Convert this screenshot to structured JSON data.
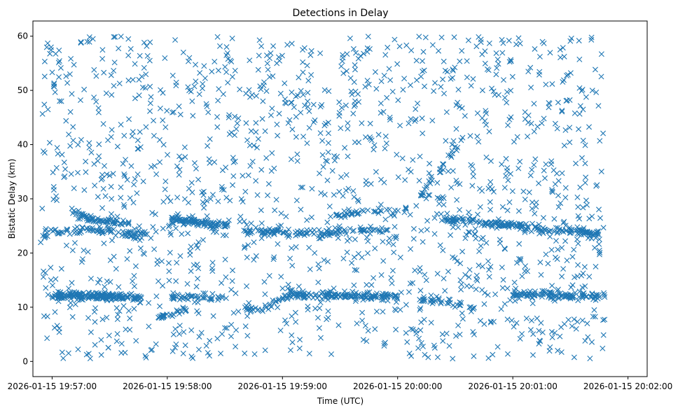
{
  "chart_data": {
    "type": "scatter",
    "title": "Detections in Delay",
    "xlabel": "Time (UTC)",
    "ylabel": "Bistatic Delay (km)",
    "marker": "x",
    "color": "#1f77b4",
    "x_range_seconds": [
      -10,
      310
    ],
    "ylim": [
      -2.8,
      62.8
    ],
    "yticks": [
      0,
      10,
      20,
      30,
      40,
      50,
      60
    ],
    "xticks": [
      {
        "t": 0,
        "label": "2026-01-15 19:57:00"
      },
      {
        "t": 60,
        "label": "2026-01-15 19:58:00"
      },
      {
        "t": 120,
        "label": "2026-01-15 19:59:00"
      },
      {
        "t": 180,
        "label": "2026-01-15 20:00:00"
      },
      {
        "t": 240,
        "label": "2026-01-15 20:01:00"
      },
      {
        "t": 300,
        "label": "2026-01-15 20:02:00"
      }
    ],
    "data_time_range_seconds": [
      -6,
      288
    ],
    "clutter_points": 1500,
    "tracks": [
      {
        "t": [
          -5,
          5,
          15,
          25,
          38,
          50
        ],
        "y": [
          23.5,
          24,
          23.8,
          24.2,
          23.6,
          23.5
        ],
        "n": 80
      },
      {
        "t": [
          0,
          8,
          15,
          22,
          30,
          37
        ],
        "y": [
          12,
          12.3,
          12.2,
          12.1,
          12,
          11.8
        ],
        "n": 140
      },
      {
        "t": [
          12,
          20,
          30,
          40
        ],
        "y": [
          27.5,
          26.5,
          25.8,
          25.5
        ],
        "n": 60
      },
      {
        "t": [
          24,
          35,
          47
        ],
        "y": [
          12.1,
          12,
          11.6
        ],
        "n": 40
      },
      {
        "t": [
          55,
          60,
          70
        ],
        "y": [
          8,
          8.5,
          9.5
        ],
        "n": 30
      },
      {
        "t": [
          62,
          70,
          80,
          92
        ],
        "y": [
          26.2,
          26,
          25.5,
          25
        ],
        "n": 90
      },
      {
        "t": [
          62,
          75,
          90
        ],
        "y": [
          12,
          11.8,
          12
        ],
        "n": 40
      },
      {
        "t": [
          100,
          108,
          115,
          125
        ],
        "y": [
          10,
          9.5,
          10.5,
          12.5
        ],
        "n": 40
      },
      {
        "t": [
          100,
          110,
          118
        ],
        "y": [
          24.3,
          24,
          23.8
        ],
        "n": 40
      },
      {
        "t": [
          120,
          135,
          150,
          165,
          175
        ],
        "y": [
          23.5,
          23.8,
          24,
          24.2,
          24.3
        ],
        "n": 80
      },
      {
        "t": [
          145,
          165,
          185
        ],
        "y": [
          26.8,
          27.8,
          28
        ],
        "n": 40
      },
      {
        "t": [
          125,
          145,
          165,
          180
        ],
        "y": [
          12.3,
          12.2,
          12,
          11.7
        ],
        "n": 140
      },
      {
        "t": [
          192,
          205,
          220
        ],
        "y": [
          11.5,
          11,
          10
        ],
        "n": 35
      },
      {
        "t": [
          205,
          220,
          238,
          255
        ],
        "y": [
          26.2,
          25.8,
          25.2,
          24.3
        ],
        "n": 110
      },
      {
        "t": [
          252,
          268,
          285
        ],
        "y": [
          24,
          24.3,
          23.5
        ],
        "n": 70
      },
      {
        "t": [
          240,
          262,
          288
        ],
        "y": [
          12.3,
          12.2,
          12
        ],
        "n": 110
      },
      {
        "t": [
          192,
          200,
          212
        ],
        "y": [
          30.5,
          34.5,
          40
        ],
        "n": 25
      }
    ]
  }
}
